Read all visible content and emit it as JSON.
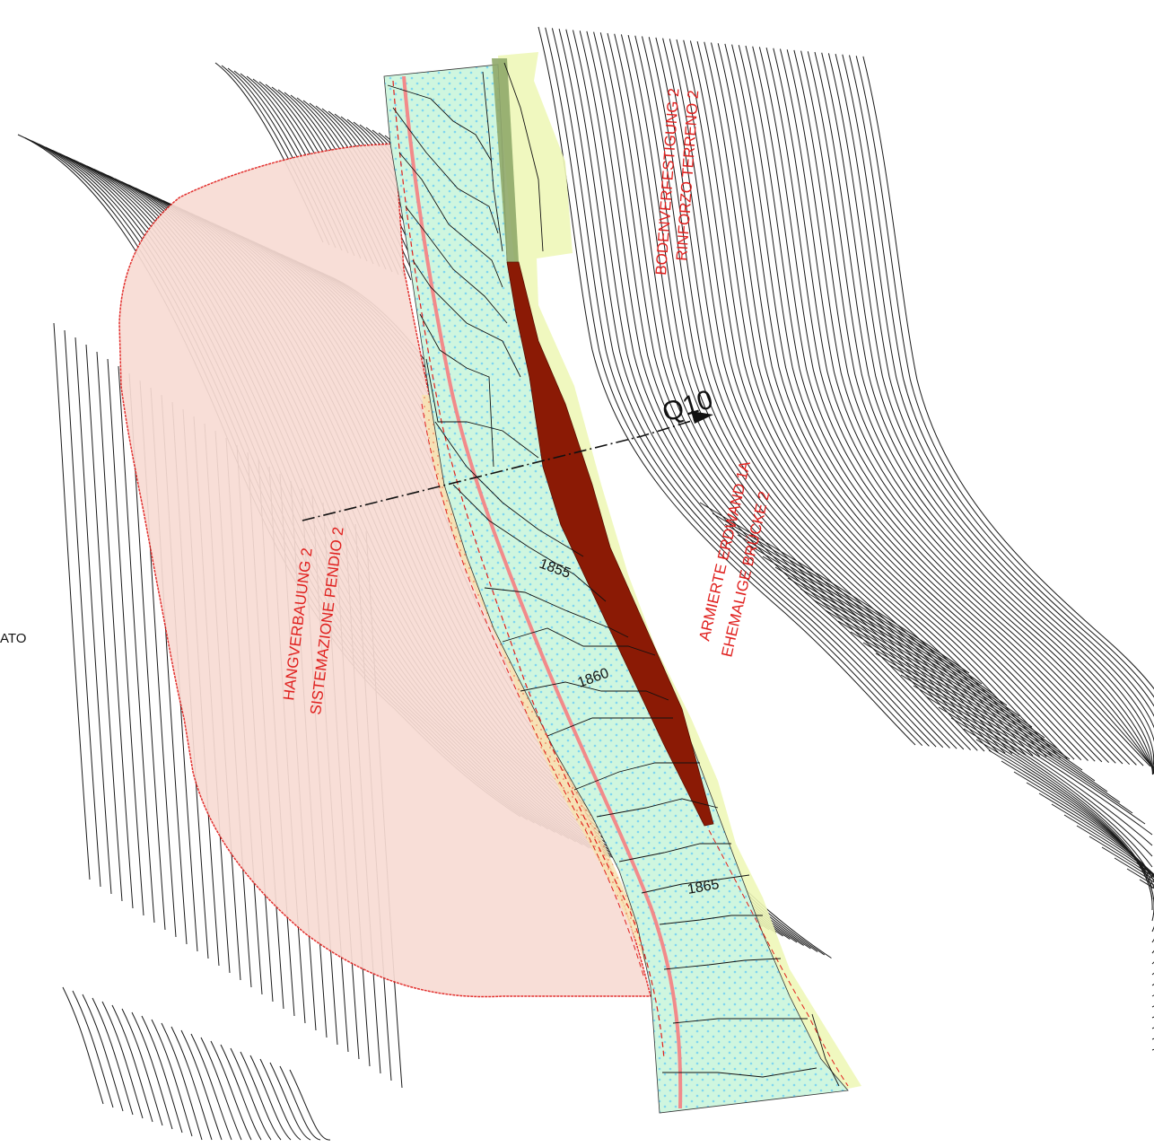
{
  "labels": {
    "section_marker": "Q10",
    "left_partial": "ATO",
    "elev_1855": "1855",
    "elev_1860": "1860",
    "elev_1865": "1865",
    "zone_slope_de": "HANGVERBAUUNG 2",
    "zone_slope_it": "SISTEMAZIONE PENDIO 2",
    "zone_soil_de": "BODENVERFESTIGUNG 2",
    "zone_soil_it": "RINFORZO TERRENO 2",
    "zone_wall_de": "ARMIERTE ERDWAND 1A",
    "zone_wall_it": "EHEMALIGE BRÜCKE 2"
  },
  "colors": {
    "slope_fill": "#f7d9d2",
    "slope_outline": "#e0201e",
    "road_fill": "#c9f5e0",
    "road_dots": "#7fd6f0",
    "verge_fill": "#eef7b8",
    "embankment_fill": "#f8e8a8",
    "wall_fill": "#8b1a05",
    "axis_line": "#f08a8a",
    "contour": "#1a1a1a",
    "label_red": "#e0201e"
  }
}
